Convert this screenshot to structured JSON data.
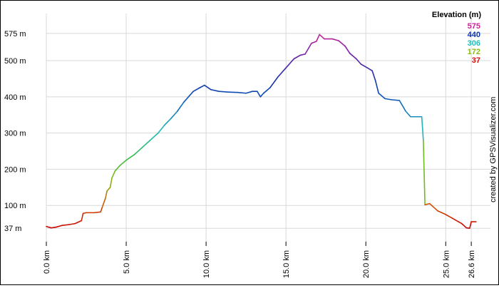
{
  "chart_data": {
    "type": "line",
    "title": "",
    "xlabel": "",
    "ylabel": "",
    "x_unit": "km",
    "y_unit": "m",
    "xlim": [
      0,
      27.8
    ],
    "ylim": [
      0,
      630
    ],
    "grid": true,
    "x_ticks": [
      {
        "value": 0,
        "label": "0.0 km"
      },
      {
        "value": 5,
        "label": "5.0 km"
      },
      {
        "value": 10,
        "label": "10.0 km"
      },
      {
        "value": 15,
        "label": "15.0 km"
      },
      {
        "value": 20,
        "label": "20.0 km"
      },
      {
        "value": 25,
        "label": "25.0 km"
      },
      {
        "value": 26.6,
        "label": "26.6 km"
      }
    ],
    "y_ticks": [
      {
        "value": 37,
        "label": "37 m"
      },
      {
        "value": 100,
        "label": "100 m"
      },
      {
        "value": 200,
        "label": "200 m"
      },
      {
        "value": 300,
        "label": "300 m"
      },
      {
        "value": 400,
        "label": "400 m"
      },
      {
        "value": 500,
        "label": "500 m"
      },
      {
        "value": 575,
        "label": "575 m"
      }
    ],
    "legend": {
      "title": "Elevation (m)",
      "placement": "top-right",
      "items": [
        {
          "label": "575",
          "color": "#cc2299"
        },
        {
          "label": "440",
          "color": "#1133aa"
        },
        {
          "label": "306",
          "color": "#22bbbb"
        },
        {
          "label": "172",
          "color": "#88bb11"
        },
        {
          "label": "37",
          "color": "#cc1111"
        }
      ]
    },
    "color_scale": {
      "min": 37,
      "max": 575,
      "stops": [
        {
          "value": 37,
          "color": "#cc0000"
        },
        {
          "value": 100,
          "color": "#cc5500"
        },
        {
          "value": 172,
          "color": "#88bb11"
        },
        {
          "value": 240,
          "color": "#33bb55"
        },
        {
          "value": 306,
          "color": "#22bbbb"
        },
        {
          "value": 380,
          "color": "#1166bb"
        },
        {
          "value": 440,
          "color": "#1133aa"
        },
        {
          "value": 510,
          "color": "#6622aa"
        },
        {
          "value": 575,
          "color": "#cc2299"
        }
      ]
    },
    "series": [
      {
        "points": [
          [
            0.0,
            42
          ],
          [
            0.3,
            38
          ],
          [
            0.6,
            40
          ],
          [
            1.0,
            45
          ],
          [
            1.4,
            47
          ],
          [
            1.8,
            50
          ],
          [
            2.2,
            58
          ],
          [
            2.3,
            78
          ],
          [
            2.5,
            80
          ],
          [
            3.0,
            80
          ],
          [
            3.4,
            82
          ],
          [
            3.5,
            95
          ],
          [
            3.7,
            120
          ],
          [
            3.8,
            140
          ],
          [
            4.0,
            150
          ],
          [
            4.1,
            175
          ],
          [
            4.3,
            195
          ],
          [
            4.6,
            210
          ],
          [
            5.0,
            225
          ],
          [
            5.5,
            240
          ],
          [
            6.0,
            260
          ],
          [
            6.5,
            280
          ],
          [
            7.0,
            300
          ],
          [
            7.4,
            322
          ],
          [
            7.8,
            340
          ],
          [
            8.2,
            360
          ],
          [
            8.6,
            385
          ],
          [
            8.9,
            400
          ],
          [
            9.2,
            415
          ],
          [
            9.6,
            425
          ],
          [
            9.9,
            432
          ],
          [
            10.3,
            420
          ],
          [
            10.8,
            415
          ],
          [
            11.4,
            413
          ],
          [
            12.0,
            412
          ],
          [
            12.5,
            410
          ],
          [
            12.9,
            415
          ],
          [
            13.2,
            415
          ],
          [
            13.4,
            400
          ],
          [
            13.6,
            410
          ],
          [
            14.0,
            425
          ],
          [
            14.5,
            455
          ],
          [
            15.0,
            480
          ],
          [
            15.5,
            505
          ],
          [
            15.9,
            515
          ],
          [
            16.2,
            518
          ],
          [
            16.6,
            548
          ],
          [
            16.9,
            553
          ],
          [
            17.1,
            572
          ],
          [
            17.4,
            560
          ],
          [
            17.9,
            560
          ],
          [
            18.3,
            555
          ],
          [
            18.7,
            540
          ],
          [
            19.0,
            520
          ],
          [
            19.4,
            505
          ],
          [
            19.7,
            490
          ],
          [
            20.1,
            480
          ],
          [
            20.4,
            472
          ],
          [
            20.6,
            445
          ],
          [
            20.8,
            410
          ],
          [
            21.2,
            395
          ],
          [
            21.6,
            392
          ],
          [
            22.1,
            390
          ],
          [
            22.5,
            360
          ],
          [
            22.8,
            345
          ],
          [
            23.1,
            345
          ],
          [
            23.5,
            345
          ],
          [
            23.6,
            280
          ],
          [
            23.7,
            102
          ],
          [
            24.0,
            105
          ],
          [
            24.5,
            85
          ],
          [
            25.0,
            75
          ],
          [
            25.4,
            65
          ],
          [
            25.8,
            55
          ],
          [
            26.0,
            50
          ],
          [
            26.3,
            38
          ],
          [
            26.5,
            37
          ],
          [
            26.6,
            55
          ],
          [
            26.9,
            55
          ]
        ]
      }
    ]
  },
  "credit": "created by GPSVisualizer.com"
}
